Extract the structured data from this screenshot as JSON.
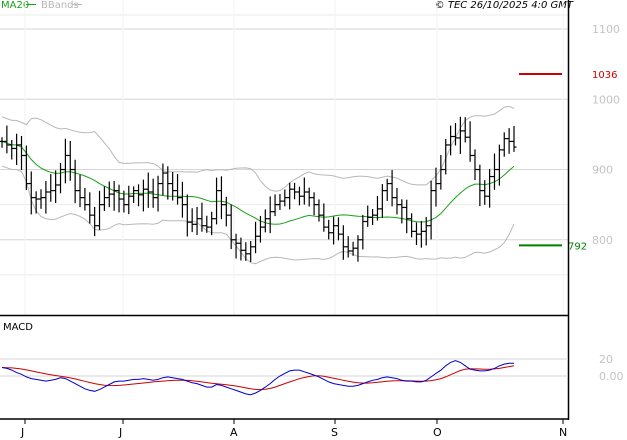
{
  "header": {
    "legend": [
      {
        "label": "MA20",
        "color": "#1aa01a"
      },
      {
        "label": "BBands",
        "color": "#b8b8b8"
      }
    ],
    "source": "© TEC 26/10/2025 4:0 GMT"
  },
  "markers": [
    {
      "label": "1036",
      "value": 1036,
      "color": "#cc0000"
    },
    {
      "label": "792",
      "value": 792,
      "color": "#008000"
    }
  ],
  "macd_panel": {
    "title": "MACD"
  },
  "chart_data": [
    {
      "type": "ohlc",
      "title": "",
      "ylim": [
        700,
        1120
      ],
      "y_ticks": [
        800,
        900,
        1000,
        1100
      ],
      "y_tick_labels": [
        "800",
        "900",
        "1000",
        "1100"
      ],
      "grid": true,
      "x_labels": [
        "J",
        "J",
        "A",
        "S",
        "O",
        "N"
      ],
      "x_label_bar_index": [
        0,
        24,
        46,
        67,
        88,
        112
      ],
      "series": [
        {
          "name": "Price",
          "color": "#000000",
          "values": [
            940,
            935,
            930,
            935,
            920,
            880,
            860,
            858,
            860,
            868,
            870,
            878,
            900,
            920,
            900,
            870,
            860,
            850,
            835,
            820,
            850,
            860,
            865,
            870,
            858,
            850,
            862,
            870,
            864,
            872,
            868,
            860,
            880,
            895,
            880,
            870,
            860,
            850,
            825,
            822,
            830,
            820,
            818,
            830,
            870,
            850,
            835,
            800,
            795,
            785,
            780,
            790,
            805,
            818,
            830,
            840,
            850,
            855,
            860,
            872,
            868,
            862,
            868,
            860,
            850,
            835,
            818,
            810,
            820,
            808,
            790,
            784,
            788,
            800,
            826,
            832,
            835,
            844,
            870,
            880,
            860,
            850,
            846,
            830,
            812,
            808,
            812,
            820,
            870,
            880,
            900,
            935,
            947,
            945,
            955,
            946,
            920,
            900,
            870,
            862,
            890,
            900,
            928,
            944,
            940,
            932
          ]
        }
      ]
    },
    {
      "type": "line",
      "title": "",
      "ylim": [
        -40,
        60
      ],
      "y_ticks": [
        0,
        20
      ],
      "y_tick_labels": [
        "0.00",
        "20"
      ],
      "x_labels": [
        "J",
        "J",
        "A",
        "S",
        "O",
        "N"
      ],
      "series": [
        {
          "name": "MACD",
          "color": "#0000cc",
          "values": [
            10,
            9,
            7,
            4,
            2,
            -1,
            -3,
            -4,
            -5,
            -6,
            -5,
            -4,
            -2,
            -3,
            -6,
            -9,
            -12,
            -15,
            -17,
            -18,
            -16,
            -13,
            -10,
            -7,
            -6,
            -6,
            -5,
            -4,
            -4,
            -3,
            -4,
            -5,
            -4,
            -2,
            -1,
            -2,
            -3,
            -4,
            -6,
            -8,
            -9,
            -11,
            -13,
            -13,
            -10,
            -11,
            -13,
            -15,
            -17,
            -19,
            -21,
            -22,
            -20,
            -17,
            -13,
            -9,
            -4,
            0,
            3,
            6,
            7,
            7,
            5,
            3,
            1,
            -1,
            -4,
            -7,
            -9,
            -10,
            -11,
            -12,
            -12,
            -11,
            -9,
            -7,
            -5,
            -4,
            -2,
            -1,
            -2,
            -3,
            -5,
            -6,
            -6,
            -7,
            -7,
            -5,
            -1,
            3,
            7,
            12,
            16,
            18,
            16,
            12,
            8,
            7,
            6,
            6,
            7,
            9,
            12,
            14,
            15,
            15
          ]
        },
        {
          "name": "Signal",
          "color": "#cc0000",
          "values": [
            10,
            9.8,
            9.5,
            9,
            8.2,
            7.2,
            6,
            4.8,
            3.6,
            2.5,
            1.5,
            0.6,
            -0.3,
            -1.2,
            -2.2,
            -3.4,
            -4.8,
            -6.2,
            -7.6,
            -9,
            -10,
            -10.8,
            -11.2,
            -11.3,
            -11,
            -10.6,
            -10,
            -9.4,
            -8.8,
            -8.2,
            -7.6,
            -7,
            -6.5,
            -6,
            -5.6,
            -5.2,
            -5,
            -5,
            -5.2,
            -5.6,
            -6.2,
            -7,
            -7.8,
            -8.6,
            -9.2,
            -9.8,
            -10.4,
            -11,
            -11.8,
            -12.8,
            -14,
            -15,
            -15.8,
            -16,
            -15.6,
            -14.6,
            -13,
            -11,
            -9,
            -7,
            -5,
            -3.2,
            -1.8,
            -0.6,
            0.2,
            0.2,
            -0.4,
            -1.4,
            -2.6,
            -3.8,
            -5,
            -6.2,
            -7.2,
            -8,
            -8.4,
            -8.4,
            -8,
            -7.4,
            -6.8,
            -6.2,
            -5.8,
            -5.6,
            -5.6,
            -5.6,
            -5.8,
            -6,
            -6.2,
            -6,
            -5.4,
            -4.4,
            -3,
            -1,
            1.5,
            4,
            6.5,
            8,
            8.5,
            8.4,
            8.2,
            8,
            8,
            8.4,
            9,
            10,
            11,
            12
          ]
        }
      ]
    }
  ]
}
